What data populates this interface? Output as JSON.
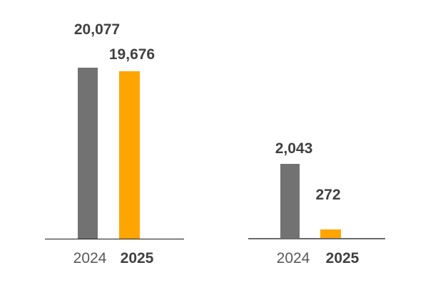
{
  "background": "#ffffff",
  "colors": {
    "bar_2024_gray": "#727272",
    "bar_2025_orange": "#ffa502",
    "value_label_dark": "#404040",
    "category_2024_gray": "#595959",
    "axis_left_black": "#1a1a1a",
    "axis_right_gray": "#6b6b6b"
  },
  "chart_data": [
    {
      "type": "bar",
      "title": "",
      "xlabel": "",
      "ylabel": "",
      "categories": [
        "2024",
        "2025"
      ],
      "values": [
        20077,
        19676
      ],
      "value_labels": [
        "20,077",
        "19,676"
      ],
      "bar_colors": [
        "#727272",
        "#ffa502"
      ],
      "ylim": [
        0,
        21000
      ],
      "grid": false,
      "legend": false,
      "axis_color": "#1a1a1a"
    },
    {
      "type": "bar",
      "title": "",
      "xlabel": "",
      "ylabel": "",
      "categories": [
        "2024",
        "2025"
      ],
      "values": [
        2043,
        272
      ],
      "value_labels": [
        "2,043",
        "272"
      ],
      "bar_colors": [
        "#727272",
        "#ffa502"
      ],
      "ylim": [
        0,
        2200
      ],
      "grid": false,
      "legend": false,
      "axis_color": "#6b6b6b"
    }
  ]
}
